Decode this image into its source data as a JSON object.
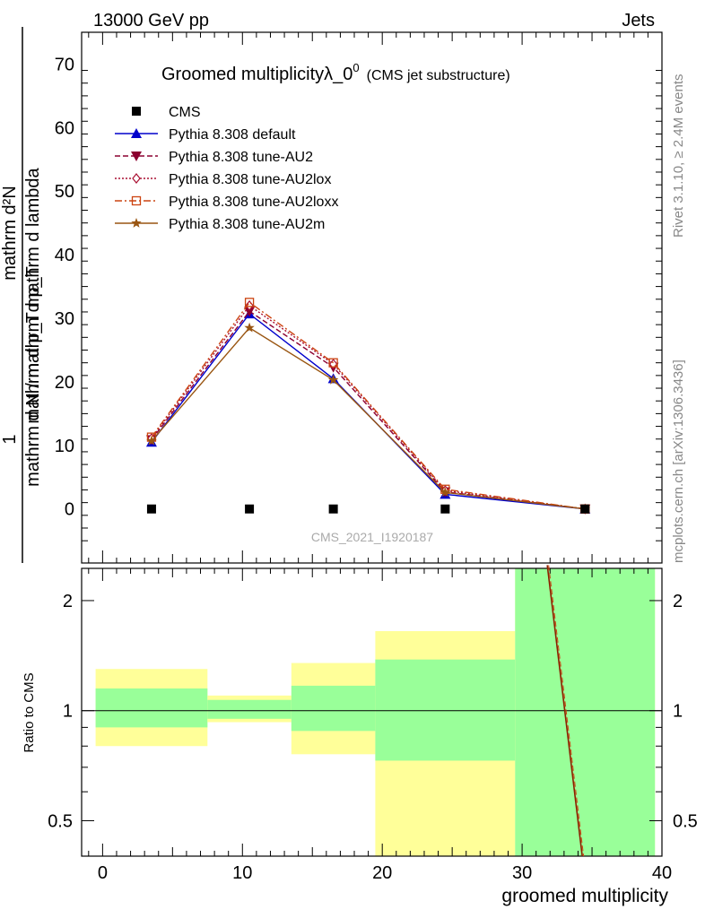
{
  "header": {
    "left": "13000 GeV pp",
    "right": "Jets"
  },
  "side_labels": {
    "rivet": "Rivet 3.1.10, ≥ 2.4M events",
    "mcplots": "mcplots.cern.ch [arXiv:1306.3436]"
  },
  "chart_data": [
    {
      "type": "line",
      "title_main": "Groomed multiplicityλ_0",
      "title_sup": "0",
      "title_sub": "(CMS jet substructure)",
      "watermark": "CMS_2021_I1920187",
      "ylabel_num": "mathrm d²N",
      "ylabel_den": "mathrm d p_T mathrm d lambda",
      "ylabel_pre_num": "1",
      "ylabel_pre_den": "mathrm d N / mathrm d p_T",
      "ylim": [
        -8.5,
        75
      ],
      "yticks": [
        0,
        10,
        20,
        30,
        40,
        50,
        60,
        70
      ],
      "xlim": [
        -1.5,
        40
      ],
      "legend_position": "top-left",
      "cms": {
        "name": "CMS",
        "x": [
          3.5,
          10.5,
          16.5,
          24.5,
          34.5
        ],
        "y": [
          0,
          0,
          0,
          0,
          0
        ],
        "color": "#000000"
      },
      "series": [
        {
          "name": "Pythia 8.308 default",
          "x": [
            3.5,
            10.5,
            16.5,
            24.5,
            34.5
          ],
          "y": [
            10.5,
            30.7,
            20.5,
            2.3,
            0
          ],
          "color": "#0000cc",
          "dash": "",
          "marker": "triangle-up"
        },
        {
          "name": "Pythia 8.308 tune-AU2",
          "x": [
            3.5,
            10.5,
            16.5,
            24.5,
            34.5
          ],
          "y": [
            10.9,
            31.1,
            22.3,
            2.7,
            0
          ],
          "color": "#8b0030",
          "dash": "6,3",
          "marker": "triangle-down"
        },
        {
          "name": "Pythia 8.308 tune-AU2lox",
          "x": [
            3.5,
            10.5,
            16.5,
            24.5,
            34.5
          ],
          "y": [
            11.1,
            32.0,
            22.8,
            2.9,
            0
          ],
          "color": "#aa1133",
          "dash": "2,2",
          "marker": "diamond-open"
        },
        {
          "name": "Pythia 8.308 tune-AU2loxx",
          "x": [
            3.5,
            10.5,
            16.5,
            24.5,
            34.5
          ],
          "y": [
            11.3,
            32.5,
            23.0,
            3.1,
            0
          ],
          "color": "#cc4411",
          "dash": "8,3,2,3",
          "marker": "square-open"
        },
        {
          "name": "Pythia 8.308 tune-AU2m",
          "x": [
            3.5,
            10.5,
            16.5,
            24.5,
            34.5
          ],
          "y": [
            10.7,
            28.5,
            20.3,
            2.6,
            0
          ],
          "color": "#995511",
          "dash": "",
          "marker": "star"
        }
      ]
    },
    {
      "type": "area",
      "ylabel": "Ratio to CMS",
      "xlabel": "groomed multiplicity",
      "ylim": [
        0.4,
        2.45
      ],
      "ylog": true,
      "yticks": [
        0.5,
        1,
        2
      ],
      "ytick_labels": [
        "0.5",
        "1",
        "2"
      ],
      "xticks": [
        0,
        10,
        20,
        30,
        40
      ],
      "xtick_labels": [
        "0",
        "10",
        "20",
        "30",
        "40"
      ],
      "xlim": [
        -1.5,
        40
      ],
      "bands": [
        {
          "x0": -0.5,
          "x1": 7.5,
          "yellow": [
            0.8,
            1.3
          ],
          "green": [
            0.9,
            1.15
          ]
        },
        {
          "x0": 7.5,
          "x1": 13.5,
          "yellow": [
            0.93,
            1.1
          ],
          "green": [
            0.95,
            1.07
          ]
        },
        {
          "x0": 13.5,
          "x1": 19.5,
          "yellow": [
            0.76,
            1.35
          ],
          "green": [
            0.88,
            1.17
          ]
        },
        {
          "x0": 19.5,
          "x1": 29.5,
          "yellow": [
            0.36,
            1.65
          ],
          "green": [
            0.73,
            1.38
          ]
        },
        {
          "x0": 29.5,
          "x1": 39.5,
          "yellow": [
            0.3,
            2.5
          ],
          "green": [
            0.3,
            2.5
          ]
        }
      ],
      "band_colors": {
        "yellow": "#ffff99",
        "green": "#99ff99"
      },
      "ratio_line": {
        "x": [
          31.8,
          34.3
        ],
        "y": [
          2.5,
          0.4
        ],
        "color": "#8b2000"
      }
    }
  ]
}
